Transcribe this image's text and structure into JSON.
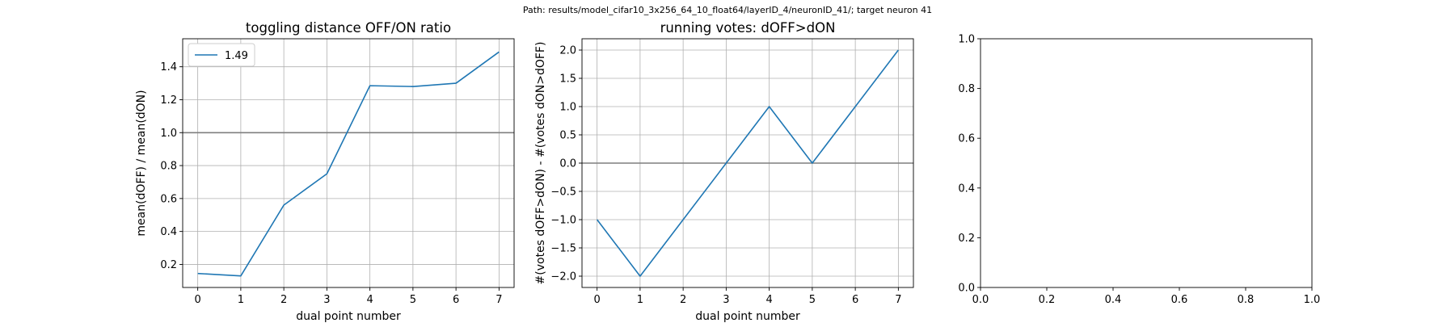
{
  "suptitle": "Path: results/model_cifar10_3x256_64_10_float64/layerID_4/neuronID_41/; target neuron 41",
  "chart_data": [
    {
      "type": "line",
      "title": "toggling distance OFF/ON ratio",
      "xlabel": "dual point number",
      "ylabel": "mean(dOFF) / mean(dON)",
      "xlim": [
        -0.35,
        7.35
      ],
      "ylim": [
        0.06,
        1.57
      ],
      "xticks": [
        0,
        1,
        2,
        3,
        4,
        5,
        6,
        7
      ],
      "yticks": [
        0.2,
        0.4,
        0.6,
        0.8,
        1.0,
        1.2,
        1.4
      ],
      "ytick_labels": [
        "0.2",
        "0.4",
        "0.6",
        "0.8",
        "1.0",
        "1.2",
        "1.4"
      ],
      "grid": true,
      "hline": 1.0,
      "legend": "top-left",
      "series": [
        {
          "name": "1.49",
          "color": "#1f77b4",
          "x": [
            0,
            1,
            2,
            3,
            4,
            5,
            6,
            7
          ],
          "y": [
            0.145,
            0.13,
            0.56,
            0.75,
            1.285,
            1.28,
            1.3,
            1.49
          ]
        }
      ]
    },
    {
      "type": "line",
      "title": "running votes: dOFF>dON",
      "xlabel": "dual point number",
      "ylabel": "#(votes dOFF>dON) - #(votes dON>dOFF)",
      "xlim": [
        -0.35,
        7.35
      ],
      "ylim": [
        -2.2,
        2.2
      ],
      "xticks": [
        0,
        1,
        2,
        3,
        4,
        5,
        6,
        7
      ],
      "yticks": [
        -2.0,
        -1.5,
        -1.0,
        -0.5,
        0.0,
        0.5,
        1.0,
        1.5,
        2.0
      ],
      "ytick_labels": [
        "−2.0",
        "−1.5",
        "−1.0",
        "−0.5",
        "0.0",
        "0.5",
        "1.0",
        "1.5",
        "2.0"
      ],
      "grid": true,
      "hline": 0.0,
      "series": [
        {
          "color": "#1f77b4",
          "x": [
            0,
            1,
            2,
            3,
            4,
            5,
            6,
            7
          ],
          "y": [
            -1,
            -2,
            -1,
            0,
            1,
            0,
            1,
            2
          ]
        }
      ]
    },
    {
      "type": "line",
      "title": "",
      "xlabel": "",
      "ylabel": "",
      "xlim": [
        0,
        1
      ],
      "ylim": [
        0,
        1
      ],
      "xticks": [
        0.0,
        0.2,
        0.4,
        0.6,
        0.8,
        1.0
      ],
      "yticks": [
        0.0,
        0.2,
        0.4,
        0.6,
        0.8,
        1.0
      ],
      "xtick_labels": [
        "0.0",
        "0.2",
        "0.4",
        "0.6",
        "0.8",
        "1.0"
      ],
      "ytick_labels": [
        "0.0",
        "0.2",
        "0.4",
        "0.6",
        "0.8",
        "1.0"
      ],
      "grid": false,
      "series": []
    }
  ]
}
